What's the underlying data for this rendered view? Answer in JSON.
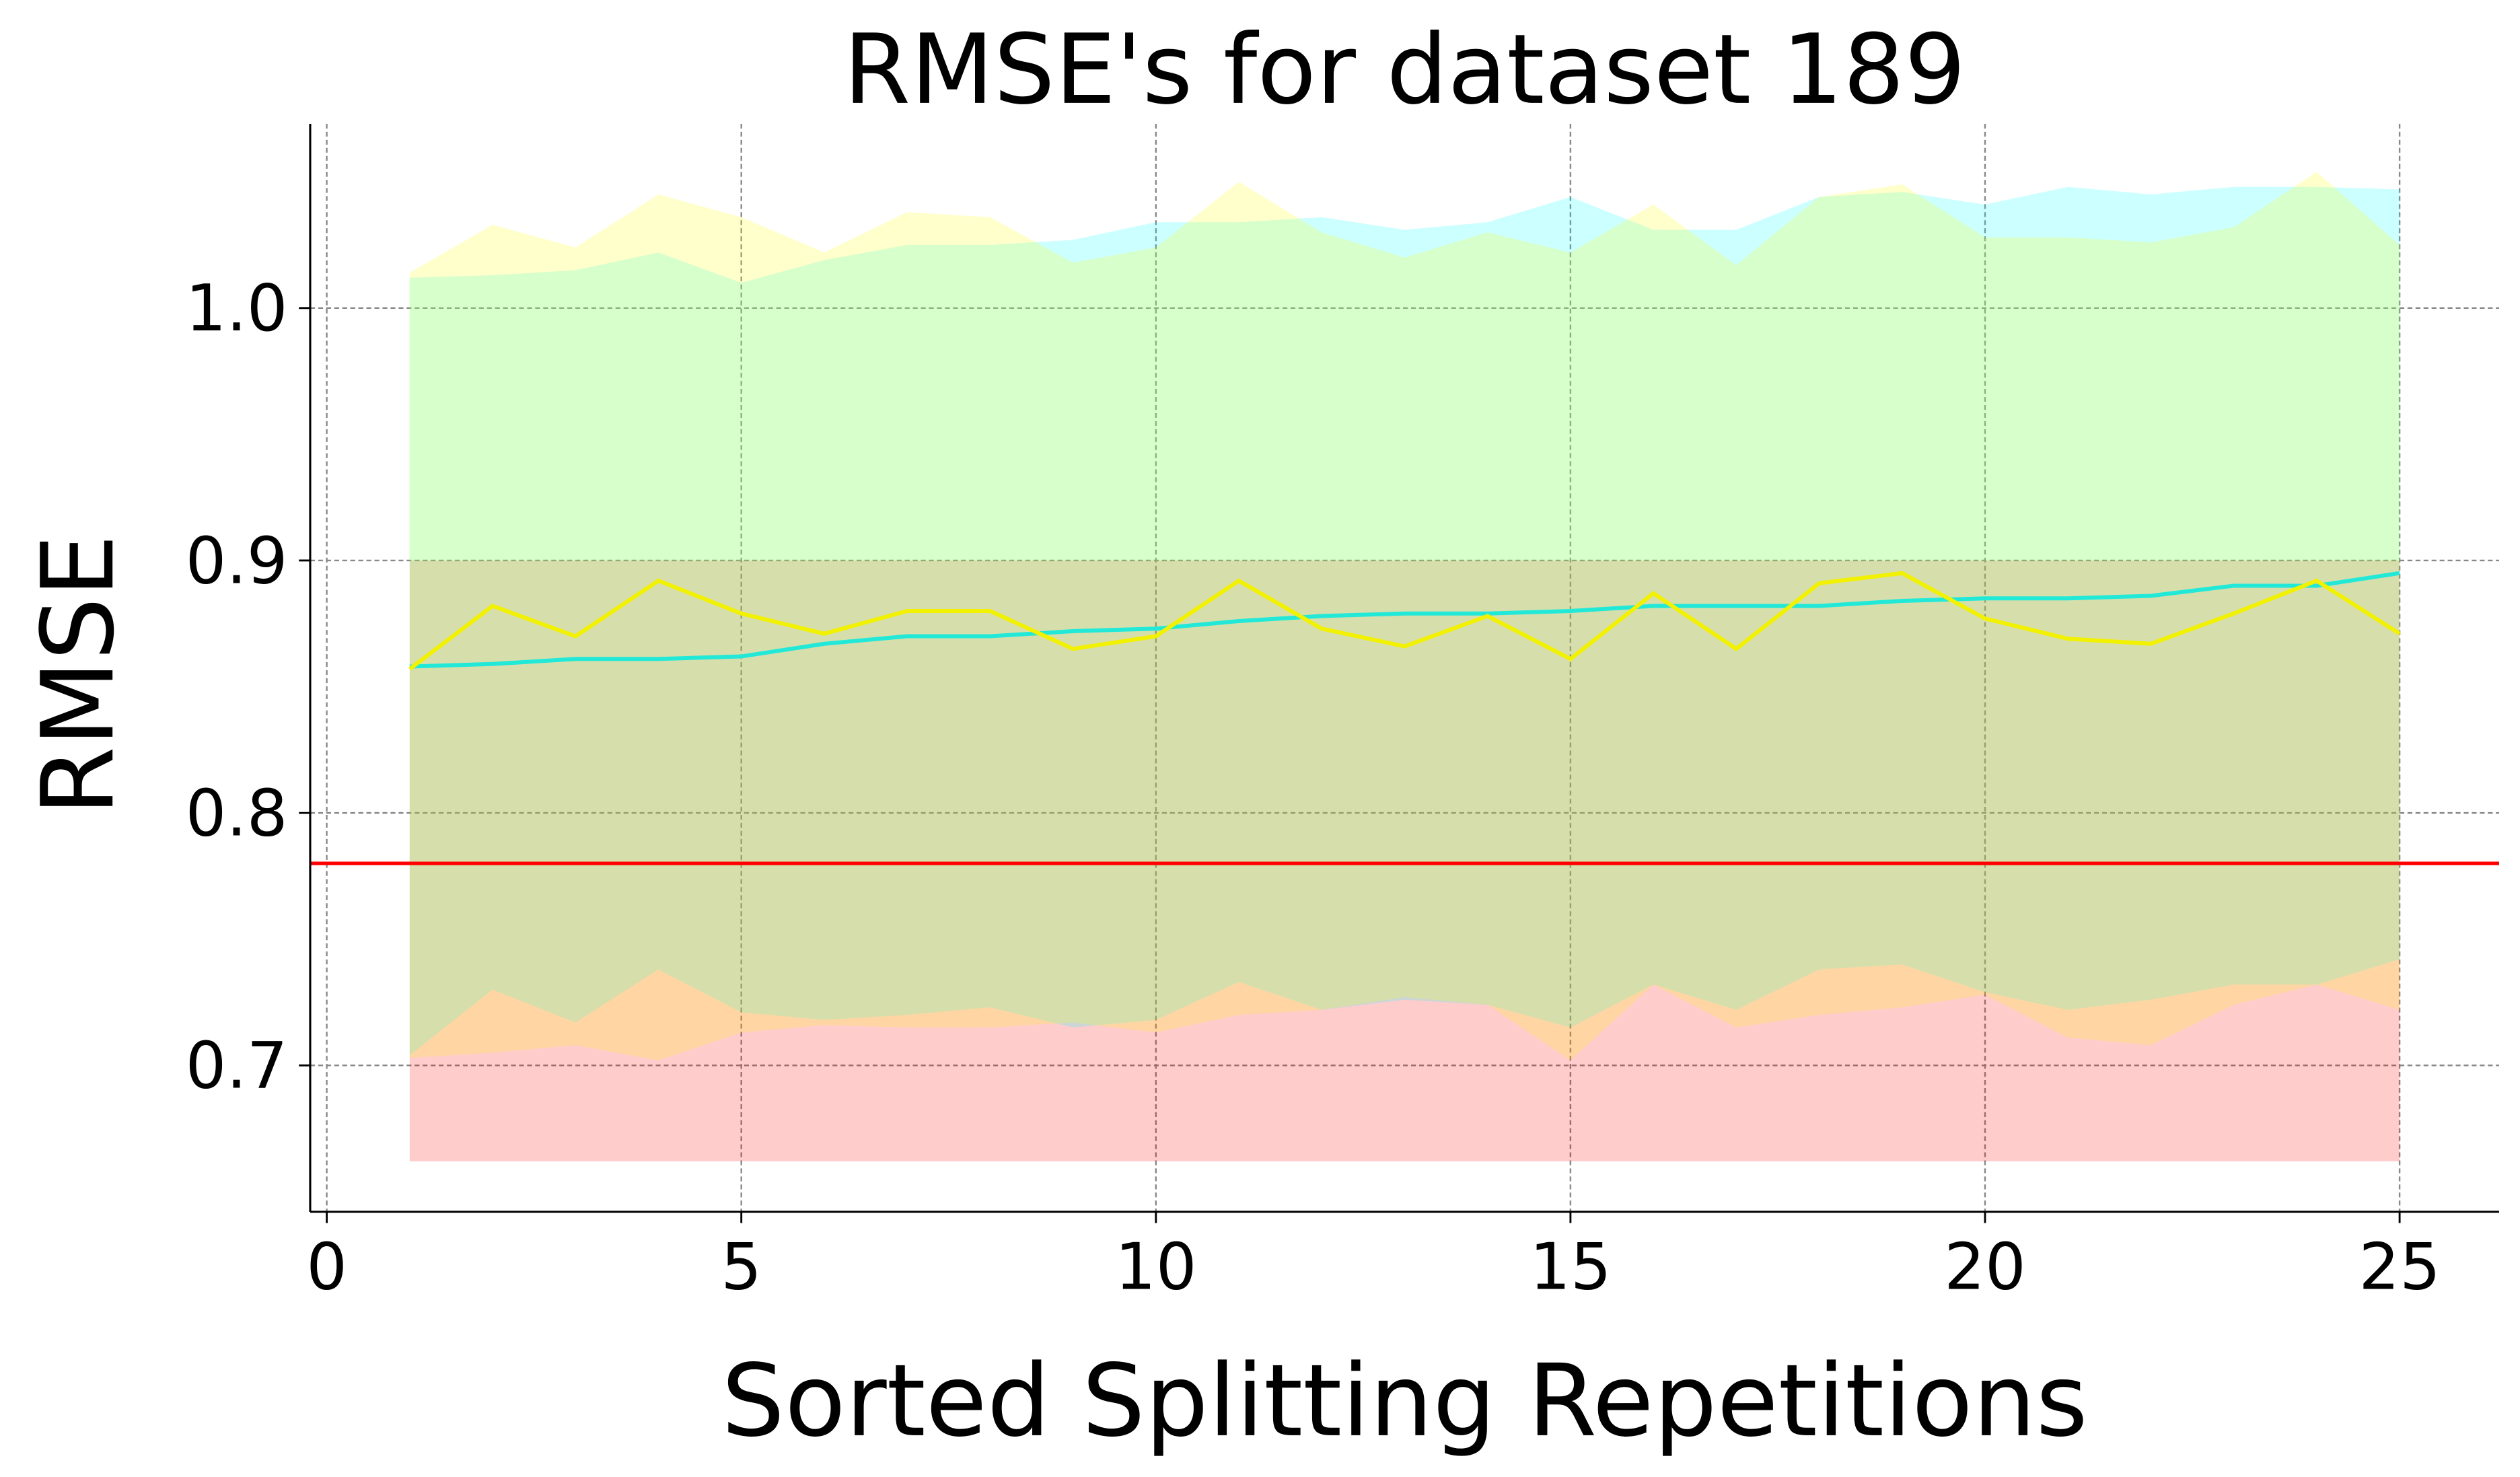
{
  "chart_data": {
    "type": "line",
    "title": "RMSE's for dataset 189",
    "xlabel": "Sorted Splitting Repetitions",
    "ylabel": "RMSE",
    "x": [
      1,
      2,
      3,
      4,
      5,
      6,
      7,
      8,
      9,
      10,
      11,
      12,
      13,
      14,
      15,
      16,
      17,
      18,
      19,
      20,
      21,
      22,
      23,
      24,
      25
    ],
    "series": [
      {
        "color": "#22e8d8",
        "fill": "#00ffff",
        "values": [
          0.858,
          0.859,
          0.861,
          0.861,
          0.862,
          0.867,
          0.87,
          0.87,
          0.872,
          0.873,
          0.876,
          0.878,
          0.879,
          0.879,
          0.88,
          0.882,
          0.882,
          0.882,
          0.884,
          0.885,
          0.885,
          0.886,
          0.89,
          0.89,
          0.895
        ],
        "upper": [
          1.012,
          1.013,
          1.015,
          1.022,
          1.01,
          1.019,
          1.025,
          1.025,
          1.027,
          1.034,
          1.034,
          1.036,
          1.031,
          1.034,
          1.044,
          1.031,
          1.031,
          1.044,
          1.046,
          1.041,
          1.048,
          1.045,
          1.048,
          1.048,
          1.047
        ],
        "lower": [
          0.704,
          0.73,
          0.717,
          0.738,
          0.721,
          0.718,
          0.72,
          0.723,
          0.715,
          0.718,
          0.733,
          0.722,
          0.726,
          0.724,
          0.715,
          0.732,
          0.722,
          0.738,
          0.74,
          0.729,
          0.722,
          0.726,
          0.732,
          0.732,
          0.742
        ]
      },
      {
        "color": "#f2f200",
        "fill": "#ffff00",
        "values": [
          0.857,
          0.882,
          0.87,
          0.892,
          0.879,
          0.871,
          0.88,
          0.88,
          0.865,
          0.87,
          0.892,
          0.873,
          0.866,
          0.878,
          0.861,
          0.887,
          0.865,
          0.891,
          0.895,
          0.877,
          0.869,
          0.867,
          0.879,
          0.892,
          0.871
        ],
        "upper": [
          1.014,
          1.033,
          1.024,
          1.045,
          1.036,
          1.022,
          1.038,
          1.036,
          1.018,
          1.024,
          1.05,
          1.03,
          1.02,
          1.03,
          1.022,
          1.041,
          1.017,
          1.044,
          1.049,
          1.028,
          1.028,
          1.026,
          1.032,
          1.054,
          1.025
        ],
        "lower": [
          0.703,
          0.705,
          0.708,
          0.702,
          0.713,
          0.716,
          0.715,
          0.715,
          0.717,
          0.713,
          0.72,
          0.722,
          0.727,
          0.724,
          0.702,
          0.732,
          0.715,
          0.72,
          0.723,
          0.728,
          0.711,
          0.708,
          0.724,
          0.732,
          0.722
        ]
      }
    ],
    "reference": {
      "value": 0.78,
      "color": "#ff0000",
      "band": [
        0.662,
        0.9
      ]
    },
    "xlim": [
      -0.2,
      26.2
    ],
    "ylim": [
      0.642,
      1.073
    ],
    "xticks": [
      0,
      5,
      10,
      15,
      20,
      25
    ],
    "yticks": [
      0.7,
      0.8,
      0.9,
      {
        "value": 1,
        "label": "1.0"
      }
    ],
    "grid": true
  }
}
